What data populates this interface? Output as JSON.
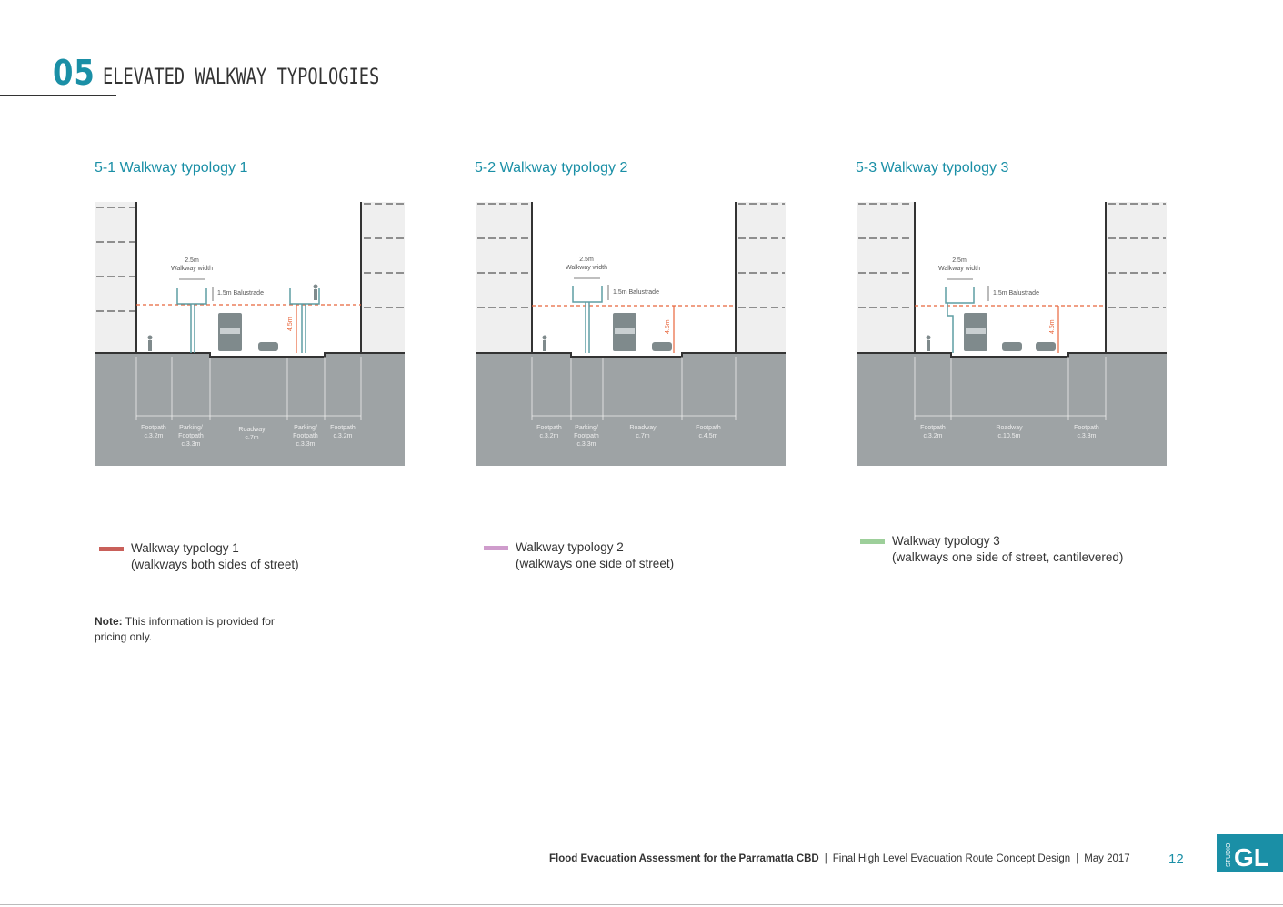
{
  "header": {
    "number": "05",
    "title": "ELEVATED WALKWAY TYPOLOGIES"
  },
  "sections": [
    {
      "title": "5-1  Walkway typology 1",
      "walkway_label_1": "2.5m",
      "walkway_label_2": "Walkway width",
      "balustrade": "1.5m Balustrade",
      "height": "4.5m",
      "dims": [
        {
          "l1": "Footpath",
          "l2": "c.3.2m",
          "l3": ""
        },
        {
          "l1": "Parking/",
          "l2": "Footpath",
          "l3": "c.3.3m"
        },
        {
          "l1": "Roadway",
          "l2": "c.7m",
          "l3": ""
        },
        {
          "l1": "Parking/",
          "l2": "Footpath",
          "l3": "c.3.3m"
        },
        {
          "l1": "Footpath",
          "l2": "c.3.2m",
          "l3": ""
        }
      ],
      "legend_line1": "Walkway typology 1",
      "legend_line2": "(walkways both sides of street)"
    },
    {
      "title": "5-2  Walkway typology 2",
      "walkway_label_1": "2.5m",
      "walkway_label_2": "Walkway width",
      "balustrade": "1.5m Balustrade",
      "height": "4.5m",
      "dims": [
        {
          "l1": "Footpath",
          "l2": "c.3.2m",
          "l3": ""
        },
        {
          "l1": "Parking/",
          "l2": "Footpath",
          "l3": "c.3.3m"
        },
        {
          "l1": "Roadway",
          "l2": "c.7m",
          "l3": ""
        },
        {
          "l1": "Footpath",
          "l2": "c.4.5m",
          "l3": ""
        }
      ],
      "legend_line1": "Walkway typology 2",
      "legend_line2": "(walkways one side of street)"
    },
    {
      "title": "5-3  Walkway typology 3",
      "walkway_label_1": "2.5m",
      "walkway_label_2": "Walkway width",
      "balustrade": "1.5m Balustrade",
      "height": "4.5m",
      "dims": [
        {
          "l1": "Footpath",
          "l2": "c.3.2m",
          "l3": ""
        },
        {
          "l1": "Roadway",
          "l2": "c.10.5m",
          "l3": ""
        },
        {
          "l1": "Footpath",
          "l2": "c.3.3m",
          "l3": ""
        }
      ],
      "legend_line1": "Walkway typology 3",
      "legend_line2": "(walkways one side of street, cantilevered)"
    }
  ],
  "legend_colors": [
    "#c9605a",
    "#cf9ccc",
    "#9dcf9a"
  ],
  "note": {
    "bold": "Note:",
    "text": " This information is provided for pricing only."
  },
  "footer": {
    "doc": "Flood Evacuation Assessment for the Parramatta CBD",
    "sep": "|",
    "subtitle": "Final High Level Evacuation Route Concept Design",
    "date": "May 2017",
    "page": "12"
  },
  "logo": {
    "small": "STUDIO",
    "big": "GL"
  },
  "colors": {
    "accent": "#1a8fa6",
    "ground": "#9ea3a5",
    "building": "#efefef",
    "walkway": "#5f9ea4",
    "height_line": "#e8663c"
  }
}
